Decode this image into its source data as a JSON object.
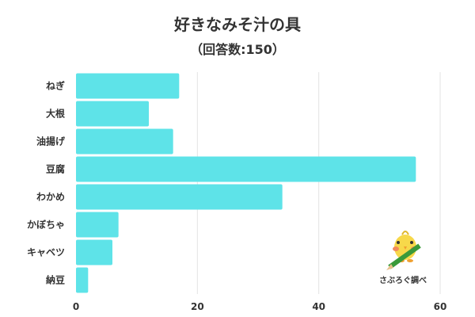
{
  "chart_data": {
    "type": "bar",
    "orientation": "horizontal",
    "title": "好きなみそ汁の具",
    "subtitle": "（回答数:150）",
    "categories": [
      "ねぎ",
      "大根",
      "油揚げ",
      "豆腐",
      "わかめ",
      "かぼちゃ",
      "キャベツ",
      "納豆"
    ],
    "values": [
      17,
      12,
      16,
      56,
      34,
      7,
      6,
      2
    ],
    "xlim": [
      0,
      60
    ],
    "xticks": [
      "0",
      "20",
      "40",
      "60"
    ],
    "grid": true,
    "bar_color": "#5ee3e8",
    "grid_color": "#e3e3e3"
  },
  "logo": {
    "text": "さぶろぐ調べ"
  }
}
